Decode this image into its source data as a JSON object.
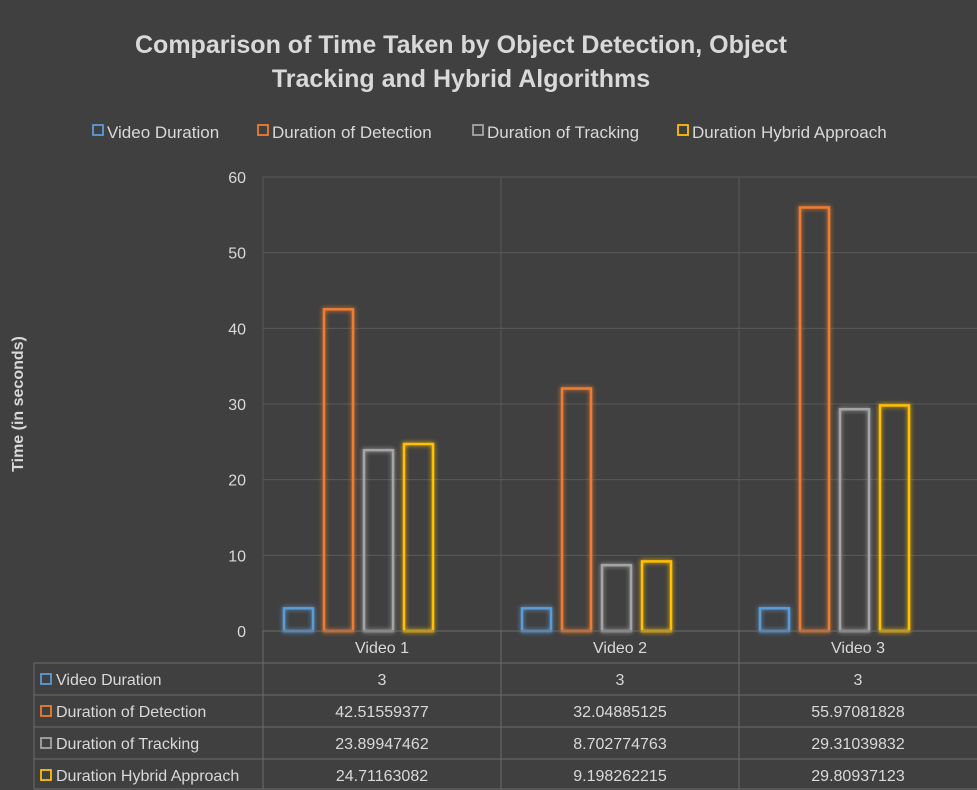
{
  "chart_data": {
    "type": "bar",
    "title_lines": [
      "Comparison of Time Taken by Object Detection, Object",
      "Tracking and Hybrid Algorithms"
    ],
    "ylabel": "Time (in seconds)",
    "xlabel": "",
    "ylim": [
      0,
      60
    ],
    "yticks": [
      "0",
      "10",
      "20",
      "30",
      "40",
      "50",
      "60"
    ],
    "grid": true,
    "legend_position": "top",
    "categories": [
      "Video 1",
      "Video 2",
      "Video 3"
    ],
    "series": [
      {
        "name": "Video Duration",
        "color": "#5b9bd5",
        "values": [
          3,
          3,
          3
        ],
        "labels": [
          "3",
          "3",
          "3"
        ]
      },
      {
        "name": "Duration of Detection",
        "color": "#ed7d31",
        "values": [
          42.51559377,
          32.04885125,
          55.97081828
        ],
        "labels": [
          "42.51559377",
          "32.04885125",
          "55.97081828"
        ]
      },
      {
        "name": "Duration of Tracking",
        "color": "#a5a5a5",
        "values": [
          23.89947462,
          8.702774763,
          29.31039832
        ],
        "labels": [
          "23.89947462",
          "8.702774763",
          "29.31039832"
        ]
      },
      {
        "name": "Duration Hybrid Approach",
        "color": "#ffc000",
        "values": [
          24.71163082,
          9.198262215,
          29.80937123
        ],
        "labels": [
          "24.71163082",
          "9.198262215",
          "29.80937123"
        ]
      }
    ]
  }
}
